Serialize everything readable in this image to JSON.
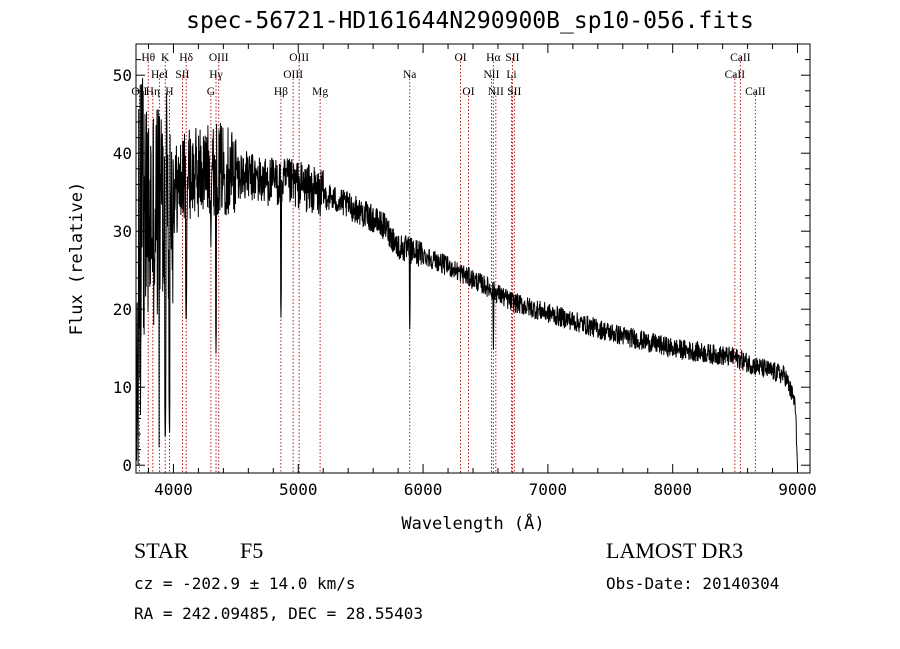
{
  "header": {
    "title": "spec-56721-HD161644N290900B_sp10-056.fits"
  },
  "info": {
    "object_class": "STAR",
    "subclass": "F5",
    "survey": "LAMOST DR3",
    "cz": "cz = -202.9 ± 14.0 km/s",
    "obs_date": "Obs-Date: 20140304",
    "radec": "RA = 242.09485, DEC =  28.55403"
  },
  "colors": {
    "spectrum": "#000000",
    "line_marker": "#b00000",
    "axis": "#000000"
  },
  "chart_data": {
    "type": "line",
    "title": "spec-56721-HD161644N290900B_sp10-056.fits",
    "xlabel": "Wavelength (Å)",
    "ylabel": "Flux (relative)",
    "xlim": [
      3700,
      9100
    ],
    "ylim": [
      -1,
      54
    ],
    "x_ticks": [
      4000,
      5000,
      6000,
      7000,
      8000,
      9000
    ],
    "y_ticks": [
      0,
      10,
      20,
      30,
      40,
      50
    ],
    "grid": false,
    "continuum": {
      "x": [
        3700,
        3760,
        3820,
        3900,
        3960,
        4000,
        4100,
        4200,
        4300,
        4400,
        4500,
        4700,
        5000,
        5300,
        5500,
        5700,
        5800,
        6000,
        6200,
        6500,
        6700,
        7000,
        7500,
        8000,
        8500,
        8700,
        8900,
        8980,
        9000
      ],
      "y": [
        2,
        30,
        32,
        33,
        34,
        35,
        37,
        37.5,
        38,
        38,
        37.5,
        36.5,
        36,
        34,
        32.5,
        30.5,
        28,
        27,
        25.5,
        23,
        21,
        19.5,
        17,
        15,
        13.8,
        12.5,
        11.5,
        8,
        0.5
      ]
    },
    "absorption_features": [
      {
        "label": "Ca K",
        "x": 3934,
        "flux": 2
      },
      {
        "label": "Ca H",
        "x": 3968,
        "flux": 3
      },
      {
        "label": "Hδ",
        "x": 4102,
        "flux": 17
      },
      {
        "label": "G band",
        "x": 4300,
        "flux": 28
      },
      {
        "label": "Hγ",
        "x": 4341,
        "flux": 14
      },
      {
        "label": "Hβ",
        "x": 4861,
        "flux": 18
      },
      {
        "label": "Mg",
        "x": 5175,
        "flux": 31
      },
      {
        "label": "Na",
        "x": 5893,
        "flux": 16.5
      },
      {
        "label": "Hα",
        "x": 6563,
        "flux": 14.5
      }
    ],
    "line_markers": [
      {
        "x": 3727,
        "label": "OII",
        "row": 3
      },
      {
        "x": 3798,
        "label": "Hθ",
        "row": 1
      },
      {
        "x": 3835,
        "label": "Hη",
        "row": 3
      },
      {
        "x": 3889,
        "label": "HeI",
        "row": 2
      },
      {
        "x": 3934,
        "label": "K",
        "row": 1
      },
      {
        "x": 3968,
        "label": "H",
        "row": 3
      },
      {
        "x": 4072,
        "label": "SII",
        "row": 2
      },
      {
        "x": 4102,
        "label": "Hδ",
        "row": 1
      },
      {
        "x": 4300,
        "label": "G",
        "row": 3
      },
      {
        "x": 4341,
        "label": "Hγ",
        "row": 2
      },
      {
        "x": 4363,
        "label": "OIII",
        "row": 1
      },
      {
        "x": 4861,
        "label": "Hβ",
        "row": 3
      },
      {
        "x": 4959,
        "label": "OIII",
        "row": 2
      },
      {
        "x": 5007,
        "label": "OIII",
        "row": 1
      },
      {
        "x": 5175,
        "label": "Mg",
        "row": 3
      },
      {
        "x": 5893,
        "label": "Na",
        "row": 2
      },
      {
        "x": 6300,
        "label": "OI",
        "row": 1
      },
      {
        "x": 6364,
        "label": "OI",
        "row": 3
      },
      {
        "x": 6548,
        "label": "NII",
        "row": 2
      },
      {
        "x": 6563,
        "label": "Hα",
        "row": 1
      },
      {
        "x": 6583,
        "label": "NII",
        "row": 3
      },
      {
        "x": 6708,
        "label": "Li",
        "row": 2
      },
      {
        "x": 6716,
        "label": "SII",
        "row": 1
      },
      {
        "x": 6731,
        "label": "SII",
        "row": 3
      },
      {
        "x": 8498,
        "label": "CaII",
        "row": 2
      },
      {
        "x": 8542,
        "label": "CaII",
        "row": 1
      },
      {
        "x": 8662,
        "label": "CaII",
        "row": 3
      }
    ]
  }
}
